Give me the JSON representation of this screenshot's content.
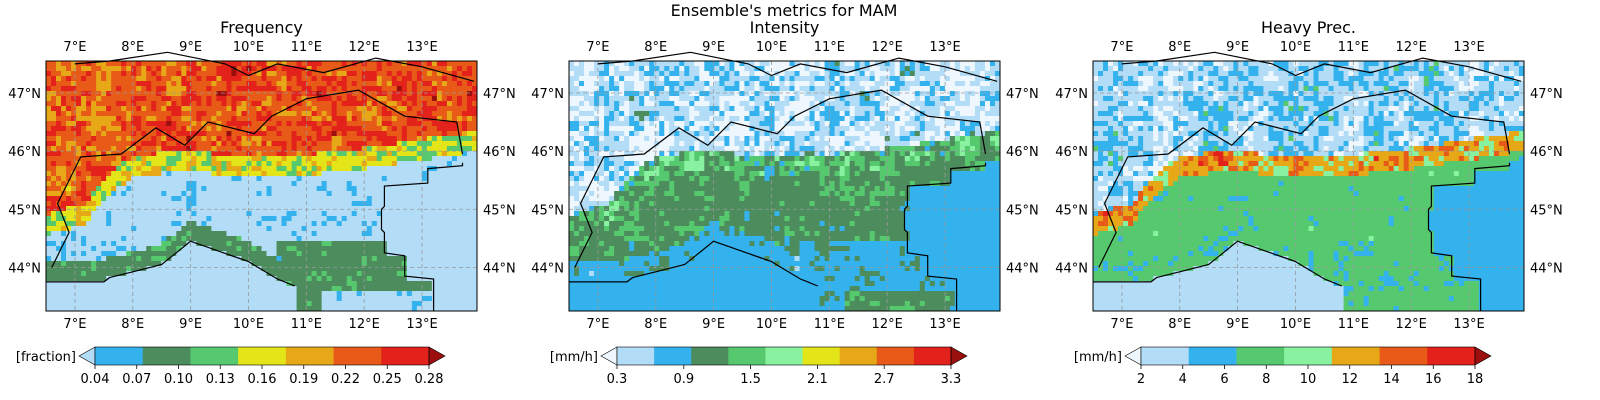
{
  "figure": {
    "suptitle": "Ensemble's metrics for MAM"
  },
  "colors": {
    "frequency": [
      "#b3dcf7",
      "#33b2ee",
      "#4d8c5d",
      "#56c96f",
      "#e3e519",
      "#e6a817",
      "#e85a17",
      "#e3221b",
      "#9b0f0f"
    ],
    "intensity": [
      "#eef7fd",
      "#b3dcf7",
      "#33b2ee",
      "#4d8c5d",
      "#56c96f",
      "#88f2a0",
      "#e3e519",
      "#e6a817",
      "#e85a17",
      "#e3221b",
      "#9b0f0f"
    ],
    "heavy": [
      "#eef7fd",
      "#b3dcf7",
      "#33b2ee",
      "#56c96f",
      "#88f2a0",
      "#e6a817",
      "#e85a17",
      "#e3221b",
      "#9b0f0f"
    ],
    "border": "#000000",
    "grid": "#999999"
  },
  "chart_data": [
    {
      "type": "heatmap",
      "title": "Frequency",
      "colorbar_label": "[fraction]",
      "colorbar_ticks": [
        "0.04",
        "0.07",
        "0.10",
        "0.13",
        "0.16",
        "0.19",
        "0.22",
        "0.25",
        "0.28"
      ],
      "bounds": [
        0.04,
        0.07,
        0.1,
        0.13,
        0.16,
        0.19,
        0.22,
        0.25,
        0.28
      ],
      "lon_ticks": [
        "7°E",
        "8°E",
        "9°E",
        "10°E",
        "11°E",
        "12°E",
        "13°E"
      ],
      "lat_ticks": [
        "47°N",
        "46°N",
        "45°N",
        "44°N"
      ],
      "lon_range": [
        6.5,
        13.95
      ],
      "lat_range": [
        43.25,
        47.55
      ],
      "grid": true,
      "regions": {
        "alps": 0.24,
        "alpine_foothills": 0.17,
        "plain": 0.06,
        "apennines": 0.12,
        "ligurian_sea": 0.045,
        "adriatic_sea": 0.05
      }
    },
    {
      "type": "heatmap",
      "title": "Intensity",
      "colorbar_label": "[mm/h]",
      "colorbar_ticks": [
        "0.3",
        "0.9",
        "1.5",
        "2.1",
        "2.7",
        "3.3"
      ],
      "bounds": [
        0.3,
        0.6,
        0.9,
        1.2,
        1.5,
        1.8,
        2.1,
        2.4,
        2.7,
        3.0,
        3.3
      ],
      "lon_ticks": [
        "7°E",
        "8°E",
        "9°E",
        "10°E",
        "11°E",
        "12°E",
        "13°E"
      ],
      "lat_ticks": [
        "47°N",
        "46°N",
        "45°N",
        "44°N"
      ],
      "lon_range": [
        6.5,
        13.95
      ],
      "lat_range": [
        43.25,
        47.55
      ],
      "grid": true,
      "regions": {
        "alps": 0.7,
        "alpine_foothills": 1.5,
        "plain": 1.4,
        "apennines": 1.1,
        "ligurian_sea": 1.0,
        "adriatic_sea": 1.0
      }
    },
    {
      "type": "heatmap",
      "title": "Heavy Prec.",
      "colorbar_label": "[mm/h]",
      "colorbar_ticks": [
        "2",
        "4",
        "6",
        "8",
        "10",
        "12",
        "14",
        "16",
        "18"
      ],
      "bounds": [
        2,
        4,
        6,
        8,
        10,
        12,
        14,
        16,
        18
      ],
      "lon_ticks": [
        "7°E",
        "8°E",
        "9°E",
        "10°E",
        "11°E",
        "12°E",
        "13°E"
      ],
      "lat_ticks": [
        "47°N",
        "46°N",
        "45°N",
        "44°N"
      ],
      "lon_range": [
        6.5,
        13.95
      ],
      "lat_range": [
        43.25,
        47.55
      ],
      "grid": true,
      "regions": {
        "alps": 5.5,
        "alpine_foothills": 13.5,
        "plain": 9.0,
        "apennines": 8.5,
        "ligurian_sea": 5.0,
        "adriatic_sea": 6.5
      }
    }
  ]
}
